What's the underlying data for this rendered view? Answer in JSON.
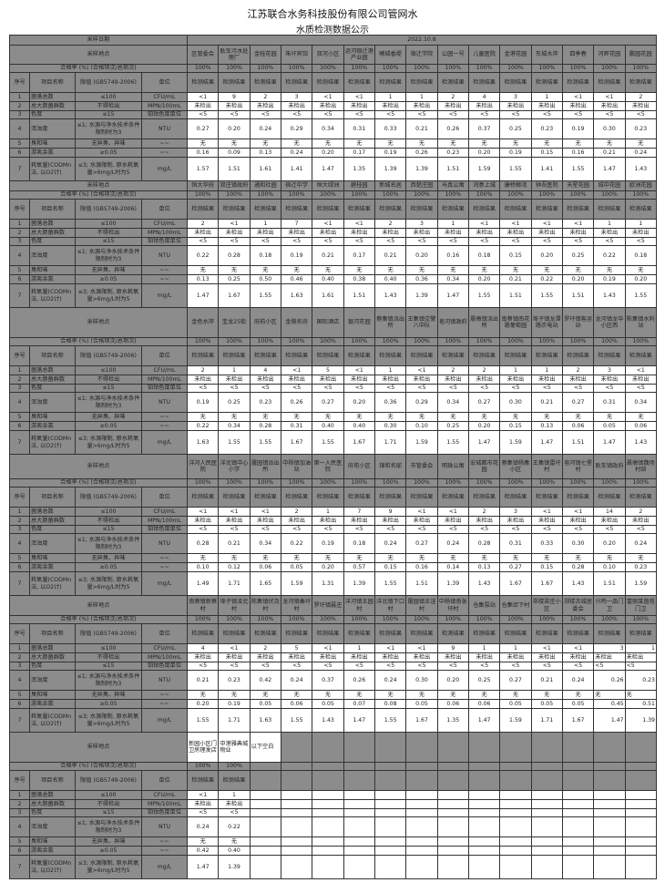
{
  "title": "江苏联合水务科技股份有限公司管网水",
  "subtitle": "水质检测数据公示",
  "labels": {
    "sample_date": "采样日期",
    "sample_location": "采样地点",
    "pass_rate": "合格率 (%) (合格项次/总项次)",
    "seq": "序号",
    "item": "项目名称",
    "limit": "限值 (GB5749-2006)",
    "unit": "单位",
    "result": "检测结果"
  },
  "sample_date": "2022.10.8",
  "items": [
    {
      "no": "1",
      "name": "菌落总数",
      "limit": "≤100",
      "unit": "CFU/mL"
    },
    {
      "no": "2",
      "name": "总大肠菌群数",
      "limit": "不得检出",
      "unit": "MPN/100mL"
    },
    {
      "no": "3",
      "name": "色度",
      "limit": "≤15",
      "unit": "铂钴色度单位"
    },
    {
      "no": "4",
      "name": "浑浊度",
      "limit": "≤1; 水源与净水技术条件限制时为3",
      "unit": "NTU"
    },
    {
      "no": "5",
      "name": "臭和味",
      "limit": "无异臭、异味",
      "unit": "~~"
    },
    {
      "no": "6",
      "name": "游离余氯",
      "limit": "≥0.05",
      "unit": "~~"
    },
    {
      "no": "7",
      "name": "耗氧量(CODMn法, 以O2计)",
      "limit": "≤3; 水源限制, 原水耗氧量>6mg/L时为5",
      "unit": "mg/L"
    }
  ],
  "blocks": [
    {
      "locations": [
        "区管委会",
        "耿车污水处理厂",
        "金桂花园",
        "朱圩宾馆",
        "双河小区",
        "运河宿迁港产业园",
        "曦城香堤",
        "宿迁学院",
        "公园一号",
        "儿童医院",
        "金港花园",
        "东城水岸",
        "四季春",
        "河畔花园",
        "鹏园花园"
      ],
      "pass": [
        "100%",
        "100%",
        "100%",
        "100%",
        "100%",
        "100%",
        "100%",
        "100%",
        "100%",
        "100%",
        "100%",
        "100%",
        "100%",
        "100%",
        "100%"
      ],
      "results": [
        [
          "<1",
          "9",
          "2",
          "3",
          "<1",
          "<1",
          "1",
          "1",
          "2",
          "4",
          "3",
          "1",
          "<1",
          "<1",
          "2"
        ],
        [
          "未检出",
          "未检出",
          "未检出",
          "未检出",
          "未检出",
          "未检出",
          "未检出",
          "未检出",
          "未检出",
          "未检出",
          "未检出",
          "未检出",
          "未检出",
          "未检出",
          "未检出"
        ],
        [
          "<5",
          "<5",
          "<5",
          "<5",
          "<5",
          "<5",
          "<5",
          "<5",
          "<5",
          "<5",
          "<5",
          "<5",
          "<5",
          "<5",
          "<5"
        ],
        [
          "0.27",
          "0.20",
          "0.24",
          "0.29",
          "0.34",
          "0.31",
          "0.33",
          "0.21",
          "0.26",
          "0.37",
          "0.25",
          "0.23",
          "0.19",
          "0.30",
          "0.23"
        ],
        [
          "无",
          "无",
          "无",
          "无",
          "无",
          "无",
          "无",
          "无",
          "无",
          "无",
          "无",
          "无",
          "无",
          "无",
          "无"
        ],
        [
          "0.16",
          "0.09",
          "0.13",
          "0.24",
          "0.20",
          "0.17",
          "0.19",
          "0.26",
          "0.23",
          "0.20",
          "0.19",
          "0.15",
          "0.16",
          "0.21",
          "0.24"
        ],
        [
          "1.57",
          "1.51",
          "1.61",
          "1.41",
          "1.47",
          "1.35",
          "1.39",
          "1.39",
          "1.51",
          "1.59",
          "1.55",
          "1.41",
          "1.55",
          "1.47",
          "1.43"
        ]
      ]
    },
    {
      "locations": [
        "恒大华府",
        "双庄镇政府",
        "通和社园",
        "宿迁中学",
        "恒大绿洲",
        "碧桂园",
        "新城名居",
        "西楚庄园",
        "马真公寓",
        "鸿意上城",
        "康桥郦湾",
        "钟吾医院",
        "天星花园",
        "城中花园",
        "欧洲花园"
      ],
      "pass": [
        "100%",
        "100%",
        "100%",
        "100%",
        "100%",
        "100%",
        "100%",
        "100%",
        "100%",
        "100%",
        "100%",
        "100%",
        "100%",
        "100%",
        "100%"
      ],
      "results": [
        [
          "2",
          "<1",
          "1",
          "7",
          "<1",
          "<1",
          "2",
          "3",
          "1",
          "<1",
          "<1",
          "<1",
          "<1",
          "1",
          "1"
        ],
        [
          "未检出",
          "未检出",
          "未检出",
          "未检出",
          "未检出",
          "未检出",
          "未检出",
          "未检出",
          "未检出",
          "未检出",
          "未检出",
          "未检出",
          "未检出",
          "未检出",
          "未检出"
        ],
        [
          "<5",
          "<5",
          "<5",
          "<5",
          "<5",
          "<5",
          "<5",
          "<5",
          "<5",
          "<5",
          "<5",
          "<5",
          "<5",
          "<5",
          "<5"
        ],
        [
          "0.22",
          "0.28",
          "0.18",
          "0.19",
          "0.21",
          "0.17",
          "0.21",
          "0.20",
          "0.16",
          "0.18",
          "0.15",
          "0.20",
          "0.25",
          "0.22",
          "0.18"
        ],
        [
          "无",
          "无",
          "无",
          "无",
          "无",
          "无",
          "无",
          "无",
          "无",
          "无",
          "无",
          "无",
          "无",
          "无",
          "无"
        ],
        [
          "0.13",
          "0.25",
          "0.50",
          "0.46",
          "0.40",
          "0.38",
          "0.40",
          "0.36",
          "0.34",
          "0.20",
          "0.21",
          "0.22",
          "0.20",
          "0.19",
          "0.20"
        ],
        [
          "1.47",
          "1.67",
          "1.55",
          "1.63",
          "1.61",
          "1.51",
          "1.43",
          "1.39",
          "1.47",
          "1.55",
          "1.51",
          "1.55",
          "1.51",
          "1.43",
          "1.55"
        ]
      ]
    },
    {
      "locations": [
        "金色水岸",
        "宝龙25街",
        "府前小区",
        "金陵名府",
        "国际酒店",
        "银河花园",
        "蔡集镇派出所",
        "王集镇交警八中队",
        "皂河镇政府",
        "晨墩镇派出所",
        "南蔡镇南花路葡萄园",
        "埠子镇龙潭路农电站",
        "罗圩镇客运站",
        "龙河镇龙华小区西",
        "陈集镇水利站"
      ],
      "pass": [
        "100%",
        "100%",
        "100%",
        "100%",
        "100%",
        "100%",
        "100%",
        "100%",
        "100%",
        "100%",
        "100%",
        "100%",
        "100%",
        "100%",
        "100%"
      ],
      "results": [
        [
          "2",
          "1",
          "4",
          "<1",
          "5",
          "<1",
          "1",
          "<1",
          "2",
          "2",
          "1",
          "1",
          "2",
          "3",
          "<1"
        ],
        [
          "未检出",
          "未检出",
          "未检出",
          "未检出",
          "未检出",
          "未检出",
          "未检出",
          "未检出",
          "未检出",
          "未检出",
          "未检出",
          "未检出",
          "未检出",
          "未检出",
          "未检出"
        ],
        [
          "<5",
          "<5",
          "<5",
          "<5",
          "<5",
          "<5",
          "<5",
          "<5",
          "<5",
          "<5",
          "<5",
          "<5",
          "<5",
          "<5",
          "<5"
        ],
        [
          "0.19",
          "0.25",
          "0.23",
          "0.26",
          "0.27",
          "0.20",
          "0.36",
          "0.29",
          "0.34",
          "0.27",
          "0.30",
          "0.21",
          "0.27",
          "0.31",
          "0.34"
        ],
        [
          "无",
          "无",
          "无",
          "无",
          "无",
          "无",
          "无",
          "无",
          "无",
          "无",
          "无",
          "无",
          "无",
          "无",
          "无"
        ],
        [
          "0.22",
          "0.34",
          "0.28",
          "0.31",
          "0.40",
          "0.40",
          "0.30",
          "0.10",
          "0.25",
          "0.20",
          "0.15",
          "0.13",
          "0.06",
          "0.05",
          "0.06"
        ],
        [
          "1.63",
          "1.55",
          "1.55",
          "1.67",
          "1.55",
          "1.67",
          "1.71",
          "1.59",
          "1.55",
          "1.47",
          "1.59",
          "1.47",
          "1.51",
          "1.47",
          "1.43"
        ]
      ]
    },
    {
      "locations": [
        "洋河人民医院",
        "洋北镇中心小学",
        "屠园镇派出所",
        "中杨镇加油站",
        "第一人民医院",
        "府苑小区",
        "锦和名邸",
        "市管委会",
        "明珠公寓",
        "宏城都市花园",
        "蔡集镇杨集小区",
        "王集镇雷圩村",
        "皂河镇七堡村",
        "耿车镇政府",
        "晨墩镇魏场村部"
      ],
      "pass": [
        "100%",
        "100%",
        "100%",
        "100%",
        "100%",
        "100%",
        "100%",
        "100%",
        "100%",
        "100%",
        "100%",
        "100%",
        "100%",
        "100%",
        "100%"
      ],
      "results": [
        [
          "<1",
          "<1",
          "<1",
          "2",
          "1",
          "7",
          "9",
          "<1",
          "<1",
          "2",
          "3",
          "<1",
          "<1",
          "14",
          "2"
        ],
        [
          "未检出",
          "未检出",
          "未检出",
          "未检出",
          "未检出",
          "未检出",
          "未检出",
          "未检出",
          "未检出",
          "未检出",
          "未检出",
          "未检出",
          "未检出",
          "未检出",
          "未检出"
        ],
        [
          "<5",
          "<5",
          "<5",
          "<5",
          "<5",
          "<5",
          "<5",
          "<5",
          "<5",
          "<5",
          "<5",
          "<5",
          "<5",
          "<5",
          "<5"
        ],
        [
          "0.28",
          "0.21",
          "0.34",
          "0.22",
          "0.19",
          "0.18",
          "0.24",
          "0.27",
          "0.24",
          "0.28",
          "0.31",
          "0.33",
          "0.30",
          "0.20",
          "0.24"
        ],
        [
          "无",
          "无",
          "无",
          "无",
          "无",
          "无",
          "无",
          "无",
          "无",
          "无",
          "无",
          "无",
          "无",
          "无",
          "无"
        ],
        [
          "0.10",
          "0.12",
          "0.06",
          "0.05",
          "0.20",
          "0.57",
          "0.15",
          "0.16",
          "0.14",
          "0.13",
          "0.27",
          "0.15",
          "0.28",
          "0.10",
          "0.23"
        ],
        [
          "1.49",
          "1.71",
          "1.65",
          "1.59",
          "1.31",
          "1.39",
          "1.55",
          "1.51",
          "1.39",
          "1.43",
          "1.67",
          "1.67",
          "1.43",
          "1.51",
          "1.59"
        ]
      ]
    },
    {
      "locations": [
        "南蔡镇新蔡村",
        "埠子镇凌北村",
        "陈集镇伏尧村",
        "龙河镇秦圩村",
        "罗圩镇聂庄",
        "洋河镇王园村",
        "洋北镇下口村",
        "屠园镇王洼村",
        "中杨镇南张圩村",
        "仓集泵站",
        "仓集邱下村",
        "郑楼梁庄小区",
        "郑楼古城居委会",
        "兴鸣一品门卫",
        "富丽莱茵苑门卫"
      ],
      "pass": [
        "100%",
        "100%",
        "100%",
        "100%",
        "100%",
        "100%",
        "100%",
        "100%",
        "100%",
        "100%",
        "100%",
        "100%",
        "100%",
        "100%",
        "100%"
      ],
      "results": [
        [
          "4",
          "<1",
          "2",
          "5",
          "<1",
          "1",
          "<1",
          "<1",
          "9",
          "1",
          "1",
          "<1",
          "<1",
          "3",
          "1"
        ],
        [
          "未检出",
          "未检出",
          "未检出",
          "未检出",
          "未检出",
          "未检出",
          "未检出",
          "未检出",
          "未检出",
          "未检出",
          "未检出",
          "未检出",
          "未检出",
          "未检出",
          "未检出"
        ],
        [
          "<5",
          "<5",
          "<5",
          "<5",
          "<5",
          "<5",
          "<5",
          "<5",
          "<5",
          "<5",
          "<5",
          "<5",
          "<5",
          "<5",
          "<5"
        ],
        [
          "0.21",
          "0.23",
          "0.42",
          "0.24",
          "0.37",
          "0.26",
          "0.24",
          "0.30",
          "0.20",
          "0.25",
          "0.27",
          "0.21",
          "0.24",
          "0.26",
          "0.23"
        ],
        [
          "无",
          "无",
          "无",
          "无",
          "无",
          "无",
          "无",
          "无",
          "无",
          "无",
          "无",
          "无",
          "无",
          "无",
          "无"
        ],
        [
          "0.20",
          "0.19",
          "0.05",
          "0.06",
          "0.05",
          "0.07",
          "0.08",
          "0.05",
          "0.06",
          "0.06",
          "0.05",
          "0.05",
          "0.05",
          "0.45",
          "0.51"
        ],
        [
          "1.55",
          "1.71",
          "1.63",
          "1.55",
          "1.43",
          "1.47",
          "1.55",
          "1.67",
          "1.35",
          "1.47",
          "1.59",
          "1.71",
          "1.67",
          "1.47",
          "1.39"
        ]
      ]
    },
    {
      "locations": [
        "新园小区门卫房理发店",
        "中港雅典城物业",
        "以下空白",
        "",
        "",
        "",
        "",
        "",
        "",
        "",
        "",
        "",
        "",
        "",
        ""
      ],
      "pass": [
        "100%",
        "100%",
        "",
        "",
        "",
        "",
        "",
        "",
        "",
        "",
        "",
        "",
        "",
        "",
        ""
      ],
      "results": [
        [
          "<1",
          "1"
        ],
        [
          "未检出",
          "未检出"
        ],
        [
          "<5",
          "<5"
        ],
        [
          "0.24",
          "0.22"
        ],
        [
          "无",
          "无"
        ],
        [
          "0.42",
          "0.40"
        ],
        [
          "1.47",
          "1.39"
        ]
      ]
    }
  ]
}
